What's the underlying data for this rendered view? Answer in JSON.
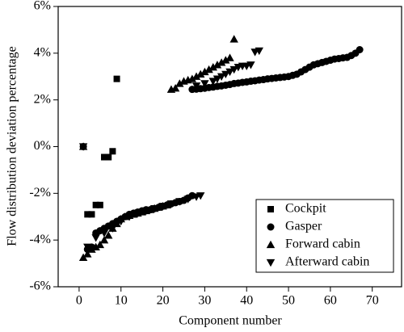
{
  "chart_data": {
    "type": "scatter",
    "x_label": "Component number",
    "y_label": "Flow distribution deviation percentage",
    "xlim": [
      -5,
      77
    ],
    "xticks": [
      0,
      10,
      20,
      30,
      40,
      50,
      60,
      70
    ],
    "ylim": [
      -6,
      6
    ],
    "yticks": [
      {
        "value": -6,
        "label": "-6%"
      },
      {
        "value": -4,
        "label": "-4%"
      },
      {
        "value": -2,
        "label": "-2%"
      },
      {
        "value": 0,
        "label": "0%"
      },
      {
        "value": 2,
        "label": "2%"
      },
      {
        "value": 4,
        "label": "4%"
      },
      {
        "value": 6,
        "label": "6%"
      }
    ],
    "legend_position": "lower right",
    "series": [
      {
        "name": "Cockpit",
        "marker": "square",
        "color": "#000000",
        "x": [
          1,
          2,
          3,
          4,
          5,
          6,
          7,
          8,
          9
        ],
        "values": [
          0,
          -2.9,
          -2.9,
          -2.5,
          -2.5,
          -0.45,
          -0.45,
          -0.2,
          2.9
        ]
      },
      {
        "name": "Gasper",
        "marker": "circle",
        "color": "#000000",
        "x": [
          1,
          2,
          3,
          4,
          5,
          6,
          7,
          8,
          9,
          10,
          11,
          12,
          13,
          14,
          15,
          16,
          17,
          18,
          19,
          20,
          21,
          22,
          23,
          24,
          25,
          26,
          27,
          27,
          28,
          29,
          30,
          31,
          32,
          33,
          34,
          35,
          36,
          37,
          38,
          39,
          40,
          41,
          42,
          43,
          44,
          45,
          46,
          47,
          48,
          49,
          50,
          51,
          52,
          53,
          54,
          55,
          56,
          57,
          58,
          59,
          60,
          61,
          62,
          63,
          64,
          65,
          66,
          67
        ],
        "values": [
          0,
          -4.4,
          -4.3,
          -3.7,
          -3.6,
          -3.5,
          -3.4,
          -3.3,
          -3.2,
          -3.1,
          -3.0,
          -2.9,
          -2.85,
          -2.8,
          -2.75,
          -2.7,
          -2.7,
          -2.65,
          -2.6,
          -2.55,
          -2.5,
          -2.45,
          -2.4,
          -2.35,
          -2.3,
          -2.2,
          -2.1,
          2.45,
          2.46,
          2.48,
          2.5,
          2.53,
          2.55,
          2.58,
          2.6,
          2.63,
          2.66,
          2.7,
          2.72,
          2.75,
          2.77,
          2.8,
          2.82,
          2.85,
          2.87,
          2.9,
          2.92,
          2.94,
          2.96,
          2.98,
          3.0,
          3.05,
          3.1,
          3.2,
          3.3,
          3.4,
          3.5,
          3.55,
          3.6,
          3.65,
          3.7,
          3.75,
          3.77,
          3.8,
          3.82,
          3.9,
          4.0,
          4.15
        ]
      },
      {
        "name": "Forward cabin",
        "marker": "triangle-up",
        "color": "#000000",
        "x": [
          1,
          1,
          2,
          3,
          4,
          5,
          6,
          7,
          8,
          9,
          10,
          11,
          12,
          13,
          14,
          15,
          16,
          17,
          18,
          19,
          20,
          21,
          22,
          23,
          24,
          25,
          26,
          27,
          28,
          29,
          30,
          31,
          32,
          33,
          34,
          35,
          36,
          37
        ],
        "values": [
          0,
          -4.75,
          -4.6,
          -4.4,
          -4.3,
          -4.2,
          -4.0,
          -3.8,
          -3.5,
          -3.3,
          -3.1,
          -3.0,
          -2.95,
          -2.9,
          -2.85,
          -2.8,
          -2.75,
          -2.7,
          -2.65,
          -2.6,
          -2.55,
          -2.5,
          2.45,
          2.5,
          2.7,
          2.8,
          2.85,
          2.9,
          3.0,
          3.1,
          3.2,
          3.3,
          3.4,
          3.5,
          3.6,
          3.7,
          3.8,
          4.6
        ]
      },
      {
        "name": "Afterward cabin",
        "marker": "triangle-down",
        "color": "#000000",
        "x": [
          1,
          2,
          4,
          6,
          8,
          10,
          12,
          14,
          16,
          18,
          20,
          22,
          24,
          26,
          28,
          29,
          28,
          30,
          32,
          33,
          34,
          35,
          36,
          37,
          38,
          39,
          40,
          41,
          42,
          43
        ],
        "values": [
          0,
          -4.3,
          -3.9,
          -3.7,
          -3.5,
          -3.2,
          -3.0,
          -2.85,
          -2.75,
          -2.65,
          -2.55,
          -2.45,
          -2.35,
          -2.25,
          -2.15,
          -2.1,
          2.6,
          2.7,
          2.8,
          2.9,
          3.0,
          3.1,
          3.2,
          3.3,
          3.4,
          3.45,
          3.45,
          3.5,
          4.05,
          4.1
        ]
      }
    ]
  }
}
